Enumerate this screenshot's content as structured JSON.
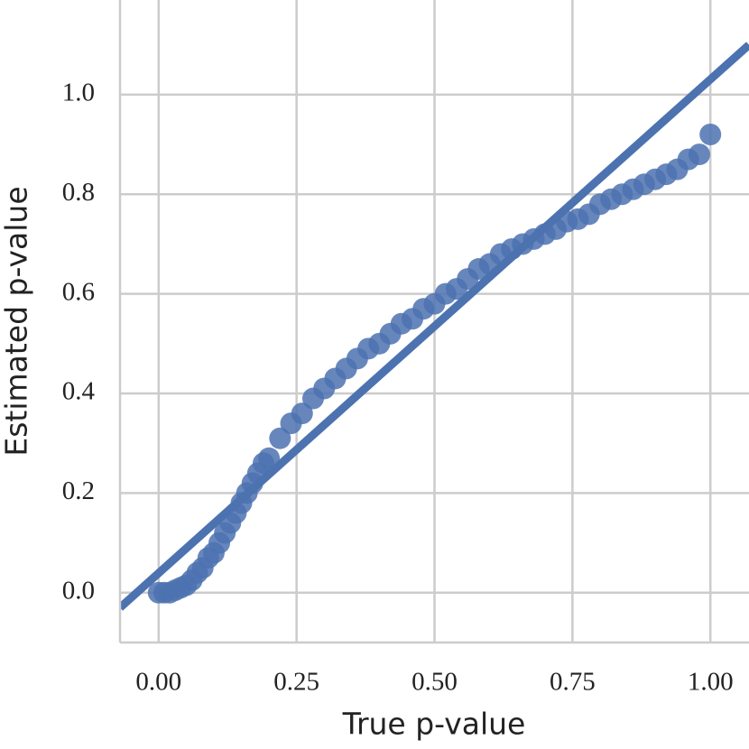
{
  "chart_data": {
    "type": "scatter",
    "xlabel": "True p-value",
    "ylabel": "Estimated p-value",
    "color": "#4c72b0",
    "grid": true,
    "xlim": [
      -0.07,
      1.07
    ],
    "ylim": [
      -0.1,
      1.19
    ],
    "xticks": [
      {
        "value": 0,
        "label": "0.00"
      },
      {
        "value": 0.25,
        "label": "0.25"
      },
      {
        "value": 0.5,
        "label": "0.50"
      },
      {
        "value": 0.75,
        "label": "0.75"
      },
      {
        "value": 1,
        "label": "1.00"
      }
    ],
    "yticks": [
      {
        "value": 0,
        "label": "0.0"
      },
      0.2,
      0.4,
      0.6,
      0.8,
      {
        "value": 1,
        "label": "1.0"
      }
    ],
    "x": [
      0,
      0.01,
      0.02,
      0.03,
      0.04,
      0.05,
      0.06,
      0.07,
      0.08,
      0.09,
      0.1,
      0.11,
      0.12,
      0.13,
      0.14,
      0.15,
      0.16,
      0.17,
      0.18,
      0.19,
      0.2,
      0.22,
      0.24,
      0.26,
      0.28,
      0.3,
      0.32,
      0.34,
      0.36,
      0.38,
      0.4,
      0.42,
      0.44,
      0.46,
      0.48,
      0.5,
      0.52,
      0.54,
      0.56,
      0.58,
      0.6,
      0.62,
      0.64,
      0.66,
      0.68,
      0.7,
      0.72,
      0.74,
      0.76,
      0.78,
      0.8,
      0.82,
      0.84,
      0.86,
      0.88,
      0.9,
      0.92,
      0.94,
      0.96,
      0.98,
      1.0
    ],
    "values": [
      0,
      0,
      0,
      0.005,
      0.01,
      0.015,
      0.025,
      0.04,
      0.05,
      0.07,
      0.08,
      0.1,
      0.12,
      0.14,
      0.16,
      0.18,
      0.2,
      0.22,
      0.24,
      0.26,
      0.27,
      0.31,
      0.34,
      0.36,
      0.39,
      0.41,
      0.43,
      0.45,
      0.47,
      0.49,
      0.5,
      0.52,
      0.54,
      0.55,
      0.57,
      0.58,
      0.6,
      0.61,
      0.63,
      0.65,
      0.66,
      0.68,
      0.69,
      0.7,
      0.71,
      0.72,
      0.73,
      0.745,
      0.75,
      0.76,
      0.78,
      0.79,
      0.8,
      0.81,
      0.82,
      0.83,
      0.84,
      0.85,
      0.87,
      0.88,
      0.92
    ],
    "fit_line": {
      "x": [
        -0.07,
        1.07
      ],
      "y": [
        -0.03,
        1.1
      ]
    }
  }
}
